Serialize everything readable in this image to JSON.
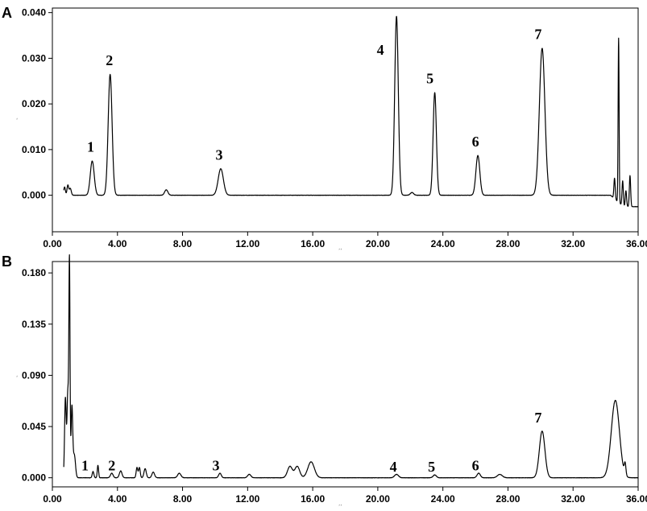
{
  "chart_data": [
    {
      "type": "line",
      "panel": "A",
      "xlabel": "",
      "ylabel": "",
      "axis_unit_x": "ʼʼ",
      "axis_unit_y": "ʻ",
      "xlim": [
        0,
        36
      ],
      "ylim": [
        -0.008,
        0.041
      ],
      "xticks": [
        "0.00",
        "4.00",
        "8.00",
        "12.00",
        "16.00",
        "20.00",
        "24.00",
        "28.00",
        "32.00",
        "36.00"
      ],
      "yticks": [
        "0.000",
        "0.010",
        "0.020",
        "0.030",
        "0.040"
      ],
      "peaks": [
        {
          "label": "1",
          "rt": 2.45,
          "height": 0.0075,
          "label_y": 0.0095
        },
        {
          "label": "2",
          "rt": 3.55,
          "height": 0.0265,
          "label_y": 0.0285
        },
        {
          "label": "3",
          "rt": 10.35,
          "height": 0.0058,
          "label_y": 0.0078
        },
        {
          "label": "4",
          "rt": 21.15,
          "height": 0.0392,
          "label_y": 0.0308
        },
        {
          "label": "5",
          "rt": 23.5,
          "height": 0.0225,
          "label_y": 0.0245
        },
        {
          "label": "6",
          "rt": 26.15,
          "height": 0.0087,
          "label_y": 0.0107
        },
        {
          "label": "7",
          "rt": 30.1,
          "height": 0.0322,
          "label_y": 0.0342
        }
      ]
    },
    {
      "type": "line",
      "panel": "B",
      "xlabel": "",
      "ylabel": "",
      "axis_unit_x": "ʼʼ",
      "axis_unit_y": "ʻ",
      "xlim": [
        0,
        36
      ],
      "ylim": [
        -0.008,
        0.19
      ],
      "xticks": [
        "0.00",
        "4.00",
        "8.00",
        "12.00",
        "16.00",
        "20.00",
        "24.00",
        "28.00",
        "32.00",
        "36.00"
      ],
      "yticks": [
        "0.000",
        "0.045",
        "0.090",
        "0.135",
        "0.180"
      ],
      "peaks": [
        {
          "label": "1",
          "rt": 2.5,
          "height": 0.0055,
          "label_y": 0.0065
        },
        {
          "label": "2",
          "rt": 3.65,
          "height": 0.004,
          "label_y": 0.0065
        },
        {
          "label": "3",
          "rt": 10.3,
          "height": 0.004,
          "label_y": 0.0065
        },
        {
          "label": "4",
          "rt": 21.15,
          "height": 0.003,
          "label_y": 0.0055
        },
        {
          "label": "5",
          "rt": 23.5,
          "height": 0.0025,
          "label_y": 0.0055
        },
        {
          "label": "6",
          "rt": 26.2,
          "height": 0.004,
          "label_y": 0.0065
        },
        {
          "label": "7",
          "rt": 30.1,
          "height": 0.041,
          "label_y": 0.0485
        }
      ]
    }
  ]
}
